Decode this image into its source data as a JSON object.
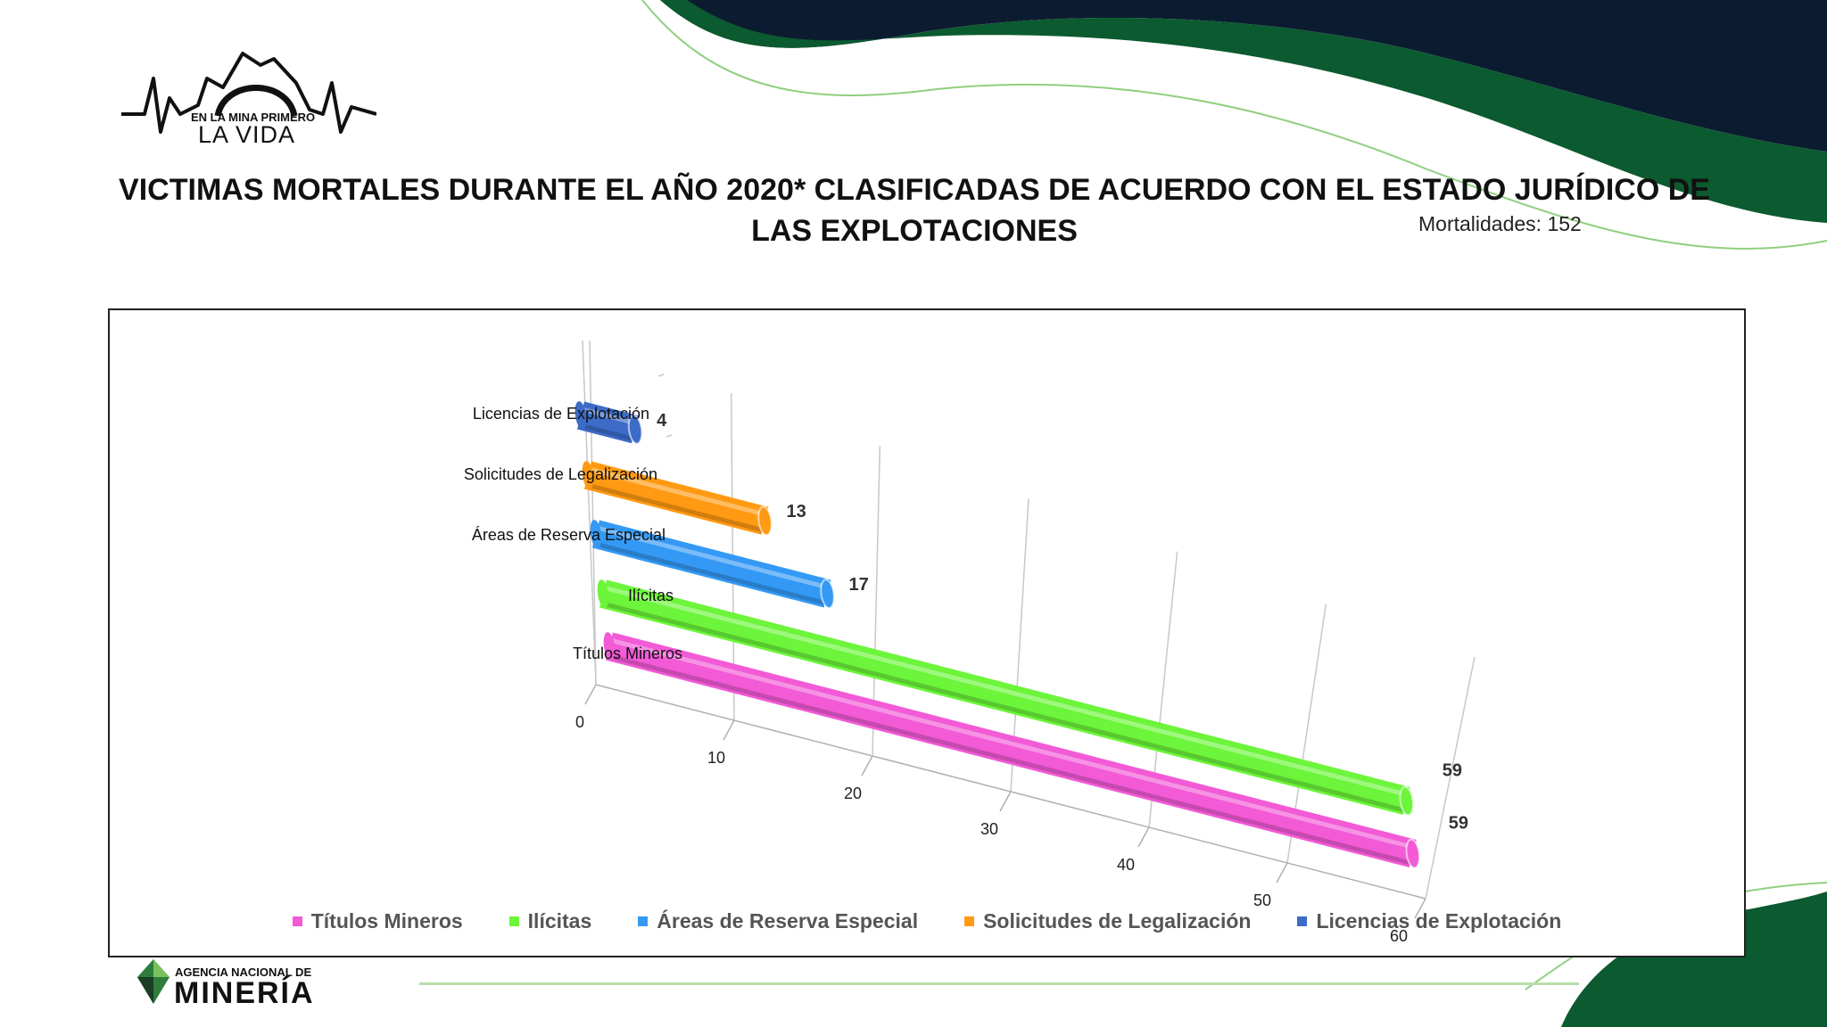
{
  "header": {
    "title": "VICTIMAS MORTALES DURANTE EL AÑO 2020* CLASIFICADAS DE ACUERDO CON EL ESTADO JURÍDICO DE LAS EXPLOTACIONES",
    "mortalities": "Mortalidades: 152"
  },
  "logos": {
    "campaign_line1": "EN LA MINA PRIMERO",
    "campaign_line2": "LA VIDA",
    "agency_line1": "AGENCIA NACIONAL DE",
    "agency_line2": "MINERÍA"
  },
  "colors": {
    "dark_navy": "#0c1c30",
    "dark_green": "#0c5a30",
    "light_green_line": "#8fcf7f"
  },
  "chart_data": {
    "type": "bar",
    "orientation": "horizontal-3d-cylinder",
    "categories": [
      "Títulos Mineros",
      "Ilícitas",
      "Áreas de Reserva Especial",
      "Solicitudes de Legalización",
      "Licencias de Explotación"
    ],
    "values": [
      59,
      59,
      17,
      13,
      4
    ],
    "colors": [
      "#f25ad6",
      "#6cf53a",
      "#3399f5",
      "#ff9a12",
      "#3d6bc8"
    ],
    "xlim": [
      0,
      60
    ],
    "ticks": [
      0,
      10,
      20,
      30,
      40,
      50,
      60
    ],
    "legend": [
      "Títulos Mineros",
      "Ilícitas",
      "Áreas de Reserva Especial",
      "Solicitudes de Legalización",
      "Licencias de Explotación"
    ],
    "legend_position": "bottom",
    "grid": true
  }
}
